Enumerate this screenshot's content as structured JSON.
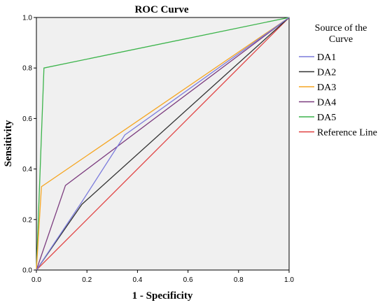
{
  "chart_data": {
    "type": "line",
    "title": "ROC Curve",
    "xlabel": "1 - Specificity",
    "ylabel": "Sensitivity",
    "xlim": [
      0,
      1
    ],
    "ylim": [
      0,
      1
    ],
    "xticks": [
      "0.0",
      "0.2",
      "0.4",
      "0.6",
      "0.8",
      "1.0"
    ],
    "yticks": [
      "0.0",
      "0.2",
      "0.4",
      "0.6",
      "0.8",
      "1.0"
    ],
    "grid": false,
    "legend_title": "Source of the Curve",
    "legend_placement": "right",
    "series": [
      {
        "name": "DA1",
        "color": "#7b7bdc",
        "points": [
          [
            0,
            0
          ],
          [
            0.18,
            0.27
          ],
          [
            0.35,
            0.535
          ],
          [
            1,
            1
          ]
        ]
      },
      {
        "name": "DA2",
        "color": "#333333",
        "points": [
          [
            0,
            0
          ],
          [
            0.18,
            0.26
          ],
          [
            1,
            1
          ]
        ]
      },
      {
        "name": "DA3",
        "color": "#f5a623",
        "points": [
          [
            0,
            0
          ],
          [
            0.02,
            0.33
          ],
          [
            1,
            1
          ]
        ]
      },
      {
        "name": "DA4",
        "color": "#7b3b7e",
        "points": [
          [
            0,
            0
          ],
          [
            0.115,
            0.335
          ],
          [
            1,
            1
          ]
        ]
      },
      {
        "name": "DA5",
        "color": "#3cb44b",
        "points": [
          [
            0,
            0
          ],
          [
            0.03,
            0.8
          ],
          [
            1,
            1
          ]
        ]
      },
      {
        "name": "Reference Line",
        "color": "#e04040",
        "points": [
          [
            0,
            0
          ],
          [
            1,
            1
          ]
        ]
      }
    ]
  }
}
